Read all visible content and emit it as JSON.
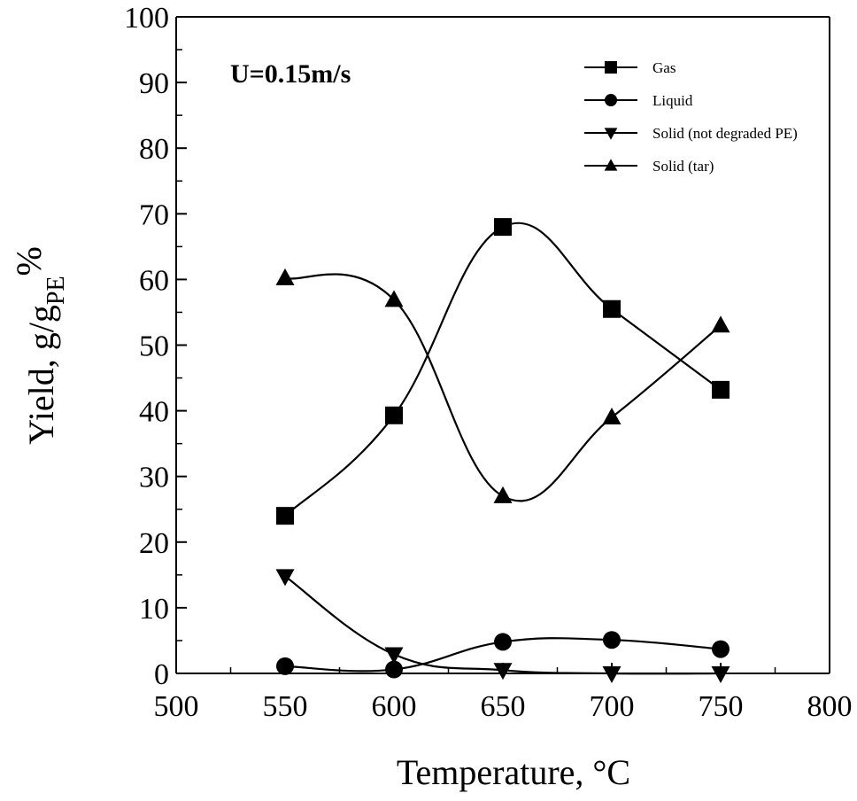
{
  "chart_data": {
    "type": "line",
    "xlabel": "Temperature, °C",
    "ylabel": {
      "main": "Yield,  g/g",
      "sub": "PE",
      "suffix": "%"
    },
    "annotation": "U=0.15m/s",
    "xlim": [
      500,
      800
    ],
    "ylim": [
      0,
      100
    ],
    "x_ticks": [
      500,
      550,
      600,
      650,
      700,
      750,
      800
    ],
    "y_ticks": [
      0,
      10,
      20,
      30,
      40,
      50,
      60,
      70,
      80,
      90,
      100
    ],
    "grid": false,
    "legend_position": "top-right",
    "x": [
      550,
      600,
      650,
      700,
      750
    ],
    "series": [
      {
        "name": "Gas",
        "marker": "square",
        "values": [
          24,
          39.3,
          68,
          55.5,
          43.2
        ]
      },
      {
        "name": "Liquid",
        "marker": "circle",
        "values": [
          1.1,
          0.6,
          4.8,
          5.1,
          3.7
        ]
      },
      {
        "name": "Solid (not degraded PE)",
        "marker": "triangle-down",
        "values": [
          14.8,
          2.9,
          0.5,
          0,
          0
        ]
      },
      {
        "name": "Solid (tar)",
        "marker": "triangle-up",
        "values": [
          60.2,
          56.9,
          27,
          39,
          53
        ]
      }
    ]
  }
}
